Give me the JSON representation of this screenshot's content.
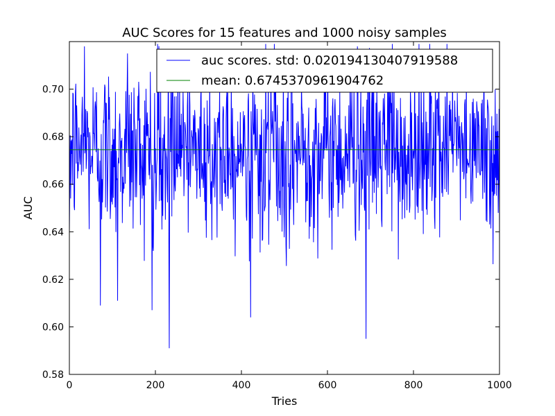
{
  "chart_data": {
    "type": "line",
    "title": "AUC Scores for 15 features and 1000 noisy samples",
    "xlabel": "Tries",
    "ylabel": "AUC",
    "xlim": [
      0,
      1000
    ],
    "ylim": [
      0.58,
      0.72
    ],
    "xticks": [
      0,
      200,
      400,
      600,
      800,
      1000
    ],
    "yticks": [
      0.58,
      0.6,
      0.62,
      0.64,
      0.66,
      0.68,
      0.7
    ],
    "xtick_labels": [
      "0",
      "200",
      "400",
      "600",
      "800",
      "1000"
    ],
    "ytick_labels": [
      "0.58",
      "0.60",
      "0.62",
      "0.64",
      "0.66",
      "0.68",
      "0.70"
    ],
    "grid": false,
    "legend_position": "top-right",
    "series": [
      {
        "name": "auc scores. std: 0.020194130407919588",
        "color": "#0000ff",
        "n_points": 1000,
        "mean": 0.6745370961904762,
        "std": 0.020194130407919588,
        "notable_points": [
          {
            "x": 0,
            "y": 0.64
          },
          {
            "x": 35,
            "y": 0.718
          },
          {
            "x": 72,
            "y": 0.609
          },
          {
            "x": 112,
            "y": 0.611
          },
          {
            "x": 135,
            "y": 0.715
          },
          {
            "x": 192,
            "y": 0.607
          },
          {
            "x": 232,
            "y": 0.591
          },
          {
            "x": 421,
            "y": 0.604
          },
          {
            "x": 669,
            "y": 0.718
          },
          {
            "x": 689,
            "y": 0.595
          },
          {
            "x": 750,
            "y": 0.719
          },
          {
            "x": 1000,
            "y": 0.636
          }
        ]
      },
      {
        "name": "mean: 0.6745370961904762",
        "color": "#008000",
        "x": [
          0,
          1000
        ],
        "values": [
          0.6745370961904762,
          0.6745370961904762
        ]
      }
    ]
  }
}
